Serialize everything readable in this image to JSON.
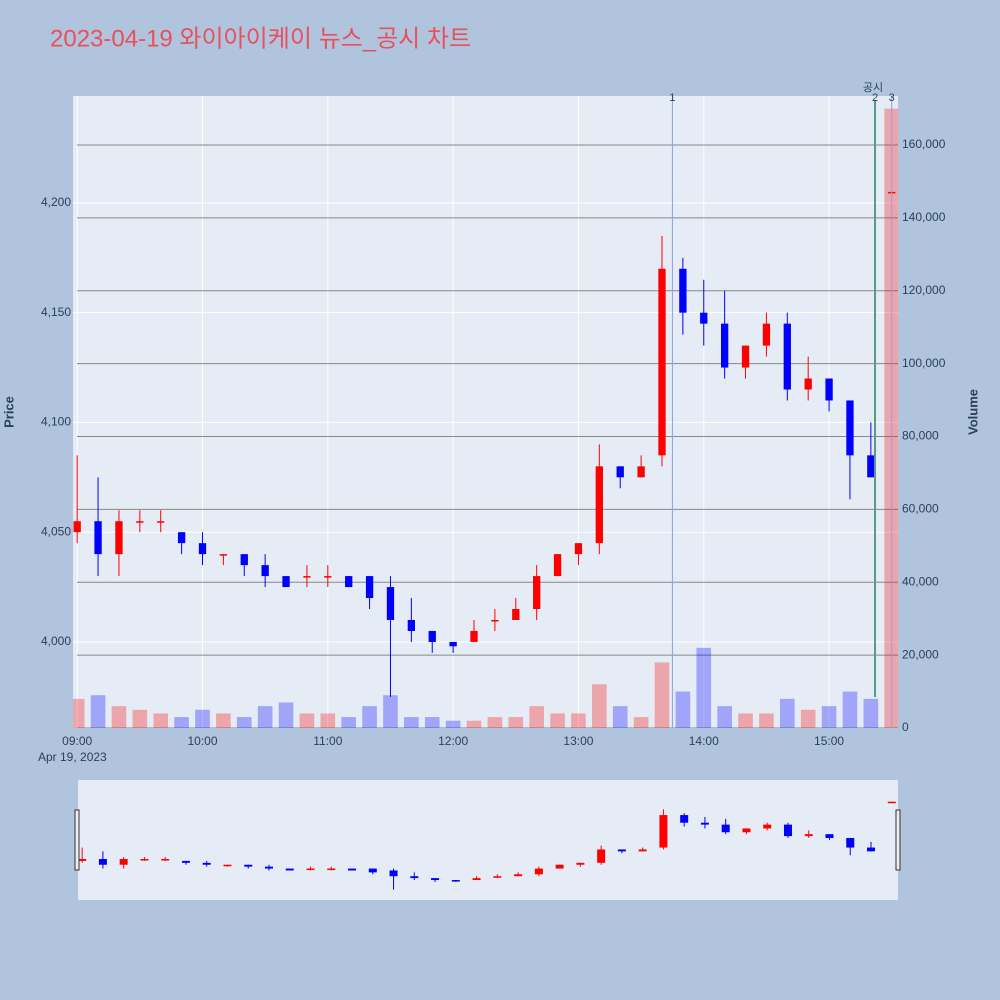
{
  "chart_data": {
    "type": "candlestick",
    "title": "2023-04-19 와이아이케이 뉴스_공시 차트",
    "y_label": "Price",
    "y2_label": "Volume",
    "x": [
      "09:00",
      "09:10",
      "09:20",
      "09:30",
      "09:40",
      "09:50",
      "10:00",
      "10:10",
      "10:20",
      "10:30",
      "10:40",
      "10:50",
      "11:00",
      "11:10",
      "11:20",
      "11:30",
      "11:40",
      "11:50",
      "12:00",
      "12:10",
      "12:20",
      "12:30",
      "12:40",
      "12:50",
      "13:00",
      "13:10",
      "13:20",
      "13:30",
      "13:40",
      "13:50",
      "14:00",
      "14:10",
      "14:20",
      "14:30",
      "14:40",
      "14:50",
      "15:00",
      "15:10",
      "15:20",
      "15:30"
    ],
    "open": [
      4050,
      4055,
      4040,
      4055,
      4055,
      4050,
      4045,
      4040,
      4040,
      4035,
      4030,
      4030,
      4030,
      4030,
      4030,
      4025,
      4010,
      4005,
      4000,
      4000,
      4010,
      4010,
      4015,
      4030,
      4040,
      4045,
      4080,
      4075,
      4085,
      4170,
      4150,
      4145,
      4125,
      4135,
      4145,
      4115,
      4120,
      4110,
      4085,
      4205
    ],
    "high": [
      4085,
      4075,
      4060,
      4060,
      4060,
      4050,
      4050,
      4040,
      4040,
      4040,
      4030,
      4035,
      4035,
      4030,
      4030,
      4030,
      4020,
      4005,
      4000,
      4010,
      4015,
      4020,
      4035,
      4040,
      4045,
      4090,
      4080,
      4085,
      4185,
      4175,
      4165,
      4160,
      4135,
      4150,
      4150,
      4130,
      4120,
      4110,
      4100,
      4205
    ],
    "low": [
      4045,
      4030,
      4030,
      4050,
      4050,
      4040,
      4035,
      4035,
      4030,
      4025,
      4025,
      4025,
      4025,
      4025,
      4015,
      3975,
      4000,
      3995,
      3995,
      4000,
      4005,
      4010,
      4010,
      4030,
      4035,
      4040,
      4070,
      4075,
      4080,
      4140,
      4135,
      4120,
      4120,
      4130,
      4110,
      4110,
      4105,
      4065,
      4075,
      4205
    ],
    "close": [
      4055,
      4040,
      4055,
      4055,
      4055,
      4045,
      4040,
      4040,
      4035,
      4030,
      4025,
      4030,
      4030,
      4025,
      4020,
      4010,
      4005,
      4000,
      3998,
      4005,
      4010,
      4015,
      4030,
      4040,
      4045,
      4080,
      4075,
      4080,
      4170,
      4150,
      4145,
      4125,
      4135,
      4145,
      4115,
      4120,
      4110,
      4085,
      4075,
      4205
    ],
    "volume": [
      8000,
      9000,
      6000,
      5000,
      4000,
      3000,
      5000,
      4000,
      3000,
      6000,
      7000,
      4000,
      4000,
      3000,
      6000,
      9000,
      3000,
      3000,
      2000,
      2000,
      3000,
      3000,
      6000,
      4000,
      4000,
      12000,
      6000,
      3000,
      18000,
      10000,
      22000,
      6000,
      4000,
      4000,
      8000,
      5000,
      6000,
      10000,
      8000,
      170000
    ],
    "up_color": "#ff0000",
    "down_color": "#0000ff",
    "xlim": [
      "08:58",
      "15:33"
    ],
    "xticks": [
      "09:00",
      "10:00",
      "11:00",
      "12:00",
      "13:00",
      "14:00",
      "15:00"
    ],
    "x_sublabel": "Apr 19, 2023",
    "ylim": [
      3960.8,
      4248.7
    ],
    "yticks": [
      {
        "value": 4000,
        "label": "4,000"
      },
      {
        "value": 4050,
        "label": "4,050"
      },
      {
        "value": 4100,
        "label": "4,100"
      },
      {
        "value": 4150,
        "label": "4,150"
      },
      {
        "value": 4200,
        "label": "4,200"
      }
    ],
    "y2lim": [
      0,
      173450
    ],
    "y2ticks": [
      0,
      {
        "value": 20000,
        "label": "20,000"
      },
      {
        "value": 40000,
        "label": "40,000"
      },
      {
        "value": 60000,
        "label": "60,000"
      },
      {
        "value": 80000,
        "label": "80,000"
      },
      {
        "value": 100000,
        "label": "100,000"
      },
      {
        "value": 120000,
        "label": "120,000"
      },
      {
        "value": 140000,
        "label": "140,000"
      },
      {
        "value": 160000,
        "label": "160,000"
      }
    ],
    "events": [
      {
        "x": "13:45",
        "label": "1"
      },
      {
        "x": "15:22",
        "label": "2",
        "name": "공시"
      },
      {
        "x": "15:30",
        "label": "3"
      }
    ],
    "grid": true,
    "rangeslider": true
  }
}
